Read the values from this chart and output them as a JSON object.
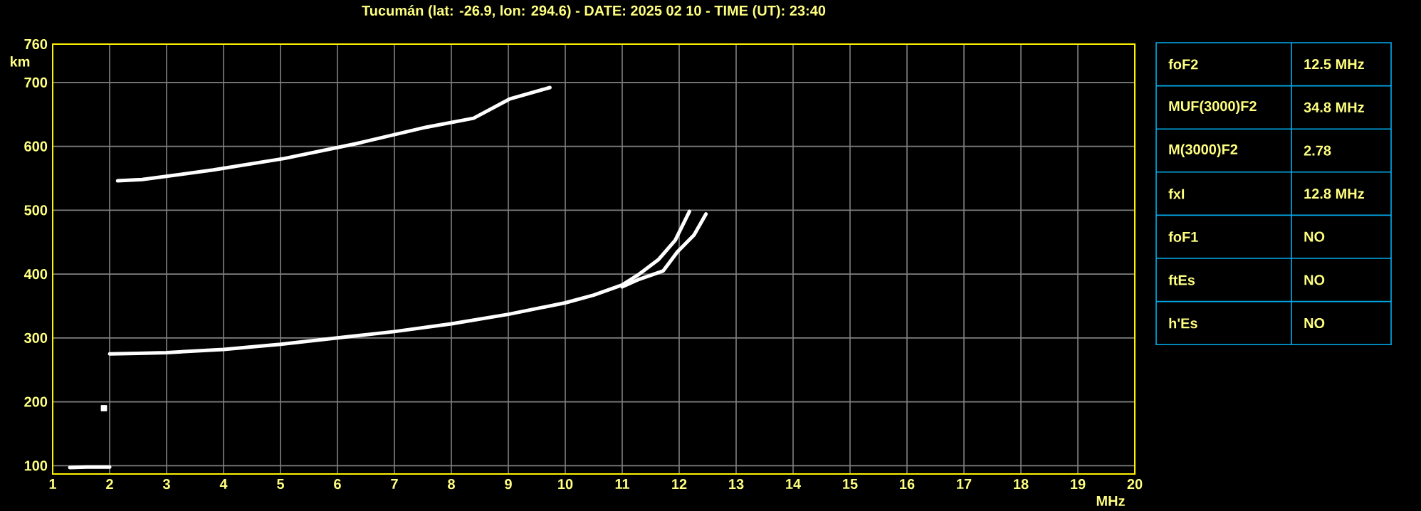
{
  "chart_data": {
    "type": "line",
    "title": "Tucumán (lat: -26.9, lon: 294.6) - DATE: 2025 02 10 - TIME (UT): 23:40",
    "xlabel": "MHz",
    "ylabel": "km",
    "xlim": [
      1,
      20
    ],
    "xticks": [
      1,
      2,
      3,
      4,
      5,
      6,
      7,
      8,
      9,
      10,
      11,
      12,
      13,
      14,
      15,
      16,
      17,
      18,
      19,
      20
    ],
    "ylim": [
      87,
      760
    ],
    "yticks": [
      100,
      200,
      300,
      400,
      500,
      600,
      700,
      760
    ],
    "grid": true,
    "series": [
      {
        "color": "#ffffff",
        "x": [
          2.0,
          2.5,
          3,
          4,
          5,
          6,
          7,
          8,
          9,
          10,
          10.5,
          11,
          11.3,
          11.64,
          11.93,
          12.18
        ],
        "values": [
          275,
          276,
          277,
          282,
          290,
          300,
          310,
          322,
          337,
          355,
          367,
          383,
          400,
          423,
          453,
          498
        ]
      },
      {
        "color": "#ffffff",
        "x": [
          11.0,
          11.3,
          11.72,
          11.97,
          12.26,
          12.47
        ],
        "values": [
          380,
          392,
          405,
          435,
          461,
          494
        ]
      },
      {
        "color": "#ffffff",
        "x": [
          2.14,
          2.57,
          3.82,
          5.07,
          6.32,
          7.56,
          8.39,
          9.02,
          9.73
        ],
        "values": [
          546,
          548,
          563,
          581,
          604,
          630,
          644,
          674,
          692
        ]
      },
      {
        "color": "#ffffff",
        "x": [
          1.3,
          1.6,
          2.0
        ],
        "values": [
          97,
          98,
          98
        ]
      },
      {
        "type": "scatter",
        "color": "#ffffff",
        "x": [
          1.9
        ],
        "values": [
          190
        ]
      }
    ],
    "annotations": [
      "foF2",
      "12.5 MHz",
      "MUF(3000)F2",
      "34.8 MHz",
      "M(3000)F2",
      "2.78",
      "fxI",
      "12.8 MHz",
      "foF1",
      "NO",
      "ftEs",
      "NO",
      "h'Es",
      "NO"
    ]
  }
}
